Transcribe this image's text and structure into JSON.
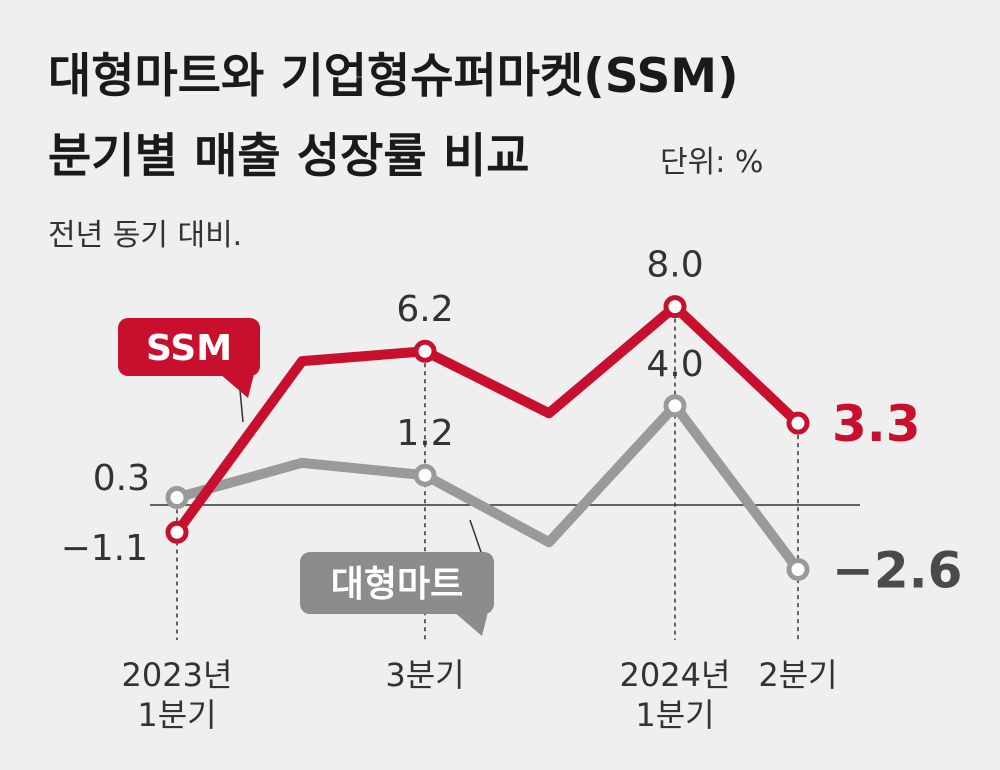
{
  "chart_data": {
    "type": "line",
    "title": [
      "대형마트와 기업형슈퍼마켓(SSM)",
      "분기별 매출 성장률 비교"
    ],
    "unit": "단위: %",
    "subtitle": "전년 동기 대비.",
    "x_tick_labels": [
      {
        "index": 0,
        "lines": [
          "2023년",
          "1분기"
        ]
      },
      {
        "index": 2,
        "lines": [
          "3분기"
        ]
      },
      {
        "index": 4,
        "lines": [
          "2024년",
          "1분기"
        ]
      },
      {
        "index": 5,
        "lines": [
          "2분기"
        ]
      }
    ],
    "series": [
      {
        "name": "SSM",
        "color": "#c8102e",
        "values": [
          -1.1,
          5.8,
          6.2,
          3.7,
          8.0,
          3.3
        ],
        "labels": {
          "0": "−1.1",
          "2": "6.2",
          "4": "8.0",
          "5": "3.3"
        }
      },
      {
        "name": "대형마트",
        "color": "#9a9a9a",
        "values": [
          0.3,
          1.7,
          1.2,
          -1.5,
          4.0,
          -2.6
        ],
        "labels": {
          "0": "0.3",
          "2": "1.2",
          "4": "4.0",
          "5": "−2.6"
        }
      }
    ],
    "markers_at": [
      0,
      2,
      4,
      5
    ],
    "baseline": 0,
    "ylim": [
      -5,
      12
    ],
    "grid": false,
    "legend": "inline-labels"
  }
}
